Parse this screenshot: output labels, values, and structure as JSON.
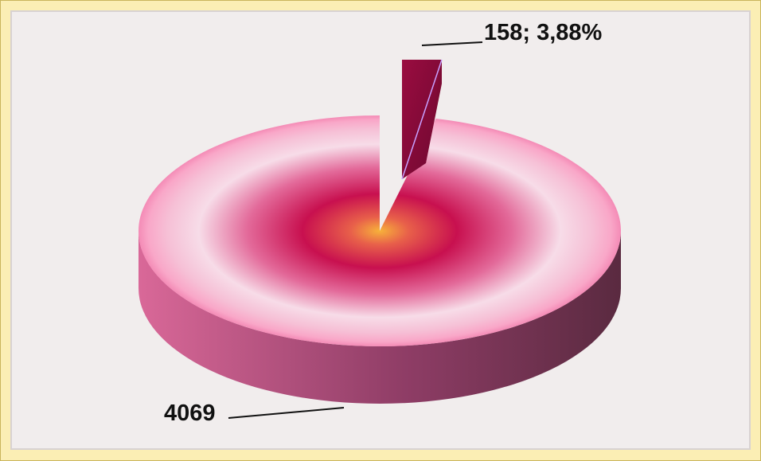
{
  "chart_data": {
    "type": "pie",
    "title": "",
    "slices": [
      {
        "value": 4069,
        "label": "4069",
        "color": "#c2185b"
      },
      {
        "value": 158,
        "label": "158; 3,88%",
        "color": "#8b0a3a"
      }
    ],
    "legend": "none",
    "style": "3d-exploded"
  }
}
